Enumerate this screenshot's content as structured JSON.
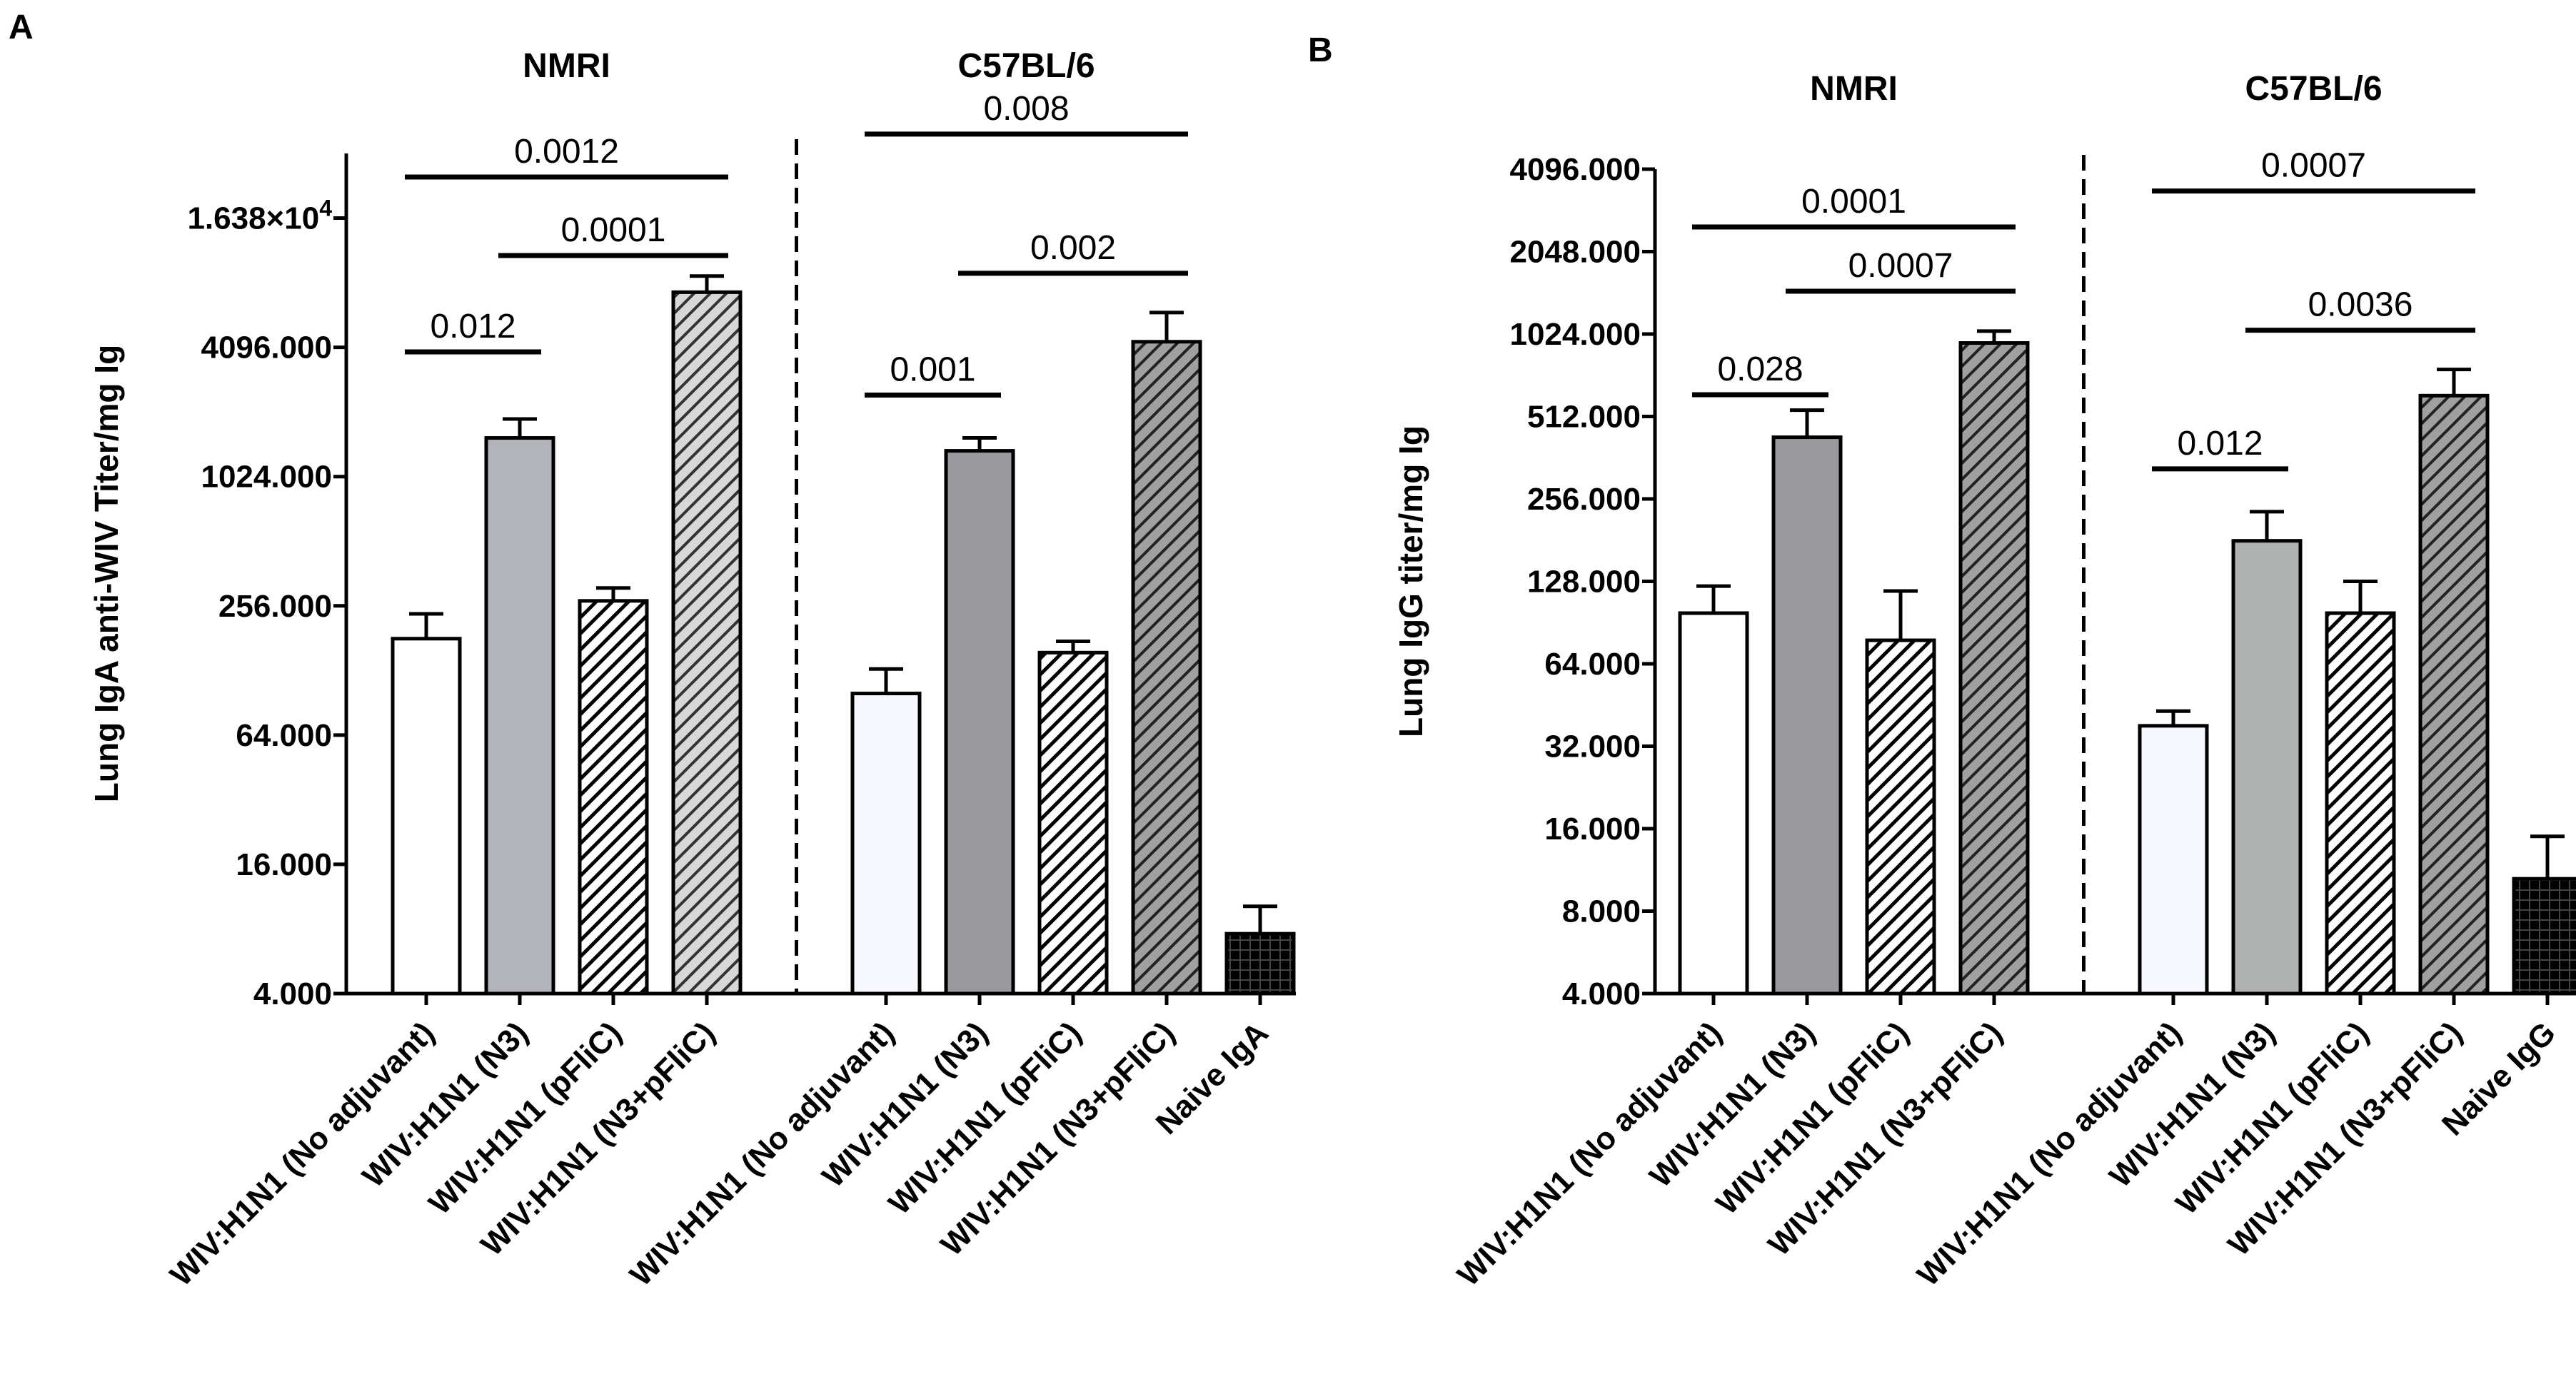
{
  "chart_data": [
    {
      "panel": "A",
      "type": "bar",
      "ylabel": "Lung IgA anti-WIV Titer/mg Ig",
      "yscale": "log2",
      "ylim": [
        4,
        32768
      ],
      "ticks": [
        {
          "value": 4,
          "label": "4.000"
        },
        {
          "value": 16,
          "label": "16.000"
        },
        {
          "value": 64,
          "label": "64.000"
        },
        {
          "value": 256,
          "label": "256.000"
        },
        {
          "value": 1024,
          "label": "1024.000"
        },
        {
          "value": 4096,
          "label": "4096.000"
        },
        {
          "value": 16384,
          "label": "1.638×10",
          "sup": "4"
        }
      ],
      "groups": [
        {
          "name": "NMRI",
          "divider_after": true
        },
        {
          "name": "C57BL/6",
          "divider_after": false
        }
      ],
      "bars": [
        {
          "group": 0,
          "label": "WIV:H1N1 (No adjuvant)",
          "value": 180,
          "error": 55,
          "style": "white"
        },
        {
          "group": 0,
          "label": "WIV:H1N1 (N3)",
          "value": 1550,
          "error": 350,
          "style": "gray"
        },
        {
          "group": 0,
          "label": "WIV:H1N1 (pFliC)",
          "value": 270,
          "error": 40,
          "style": "hatch-white"
        },
        {
          "group": 0,
          "label": "WIV:H1N1 (N3+pFliC)",
          "value": 7400,
          "error": 1400,
          "style": "hatch-gray"
        },
        {
          "group": 1,
          "label": "WIV:H1N1 (No adjuvant)",
          "value": 100,
          "error": 30,
          "style": "white-blue"
        },
        {
          "group": 1,
          "label": "WIV:H1N1 (N3)",
          "value": 1350,
          "error": 200,
          "style": "gray-dark"
        },
        {
          "group": 1,
          "label": "WIV:H1N1 (pFliC)",
          "value": 155,
          "error": 20,
          "style": "hatch-white"
        },
        {
          "group": 1,
          "label": "WIV:H1N1 (N3+pFliC)",
          "value": 4350,
          "error": 1600,
          "style": "hatch-dark"
        },
        {
          "group": 1,
          "label": "Naive IgA",
          "value": 7.6,
          "error": 2.6,
          "style": "black-grid"
        }
      ],
      "brackets": [
        {
          "from": 0,
          "to": 1,
          "label": "0.012"
        },
        {
          "from": 0,
          "to": 3,
          "label": "0.0012"
        },
        {
          "from": 1,
          "to": 3,
          "label": "0.0001"
        },
        {
          "from": 4,
          "to": 5,
          "label": "0.001"
        },
        {
          "from": 4,
          "to": 7,
          "label": "0.008"
        },
        {
          "from": 5,
          "to": 7,
          "label": "0.002"
        }
      ]
    },
    {
      "panel": "B",
      "type": "bar",
      "ylabel": "Lung IgG titer/mg Ig",
      "yscale": "log2",
      "ylim": [
        4,
        4096
      ],
      "ticks": [
        {
          "value": 4,
          "label": "4.000"
        },
        {
          "value": 8,
          "label": "8.000"
        },
        {
          "value": 16,
          "label": "16.000"
        },
        {
          "value": 32,
          "label": "32.000"
        },
        {
          "value": 64,
          "label": "64.000"
        },
        {
          "value": 128,
          "label": "128.000"
        },
        {
          "value": 256,
          "label": "256.000"
        },
        {
          "value": 512,
          "label": "512.000"
        },
        {
          "value": 1024,
          "label": "1024.000"
        },
        {
          "value": 2048,
          "label": "2048.000"
        },
        {
          "value": 4096,
          "label": "4096.000"
        }
      ],
      "groups": [
        {
          "name": "NMRI",
          "divider_after": true
        },
        {
          "name": "C57BL/6",
          "divider_after": false
        }
      ],
      "bars": [
        {
          "group": 0,
          "label": "WIV:H1N1 (No adjuvant)",
          "value": 98,
          "error": 25,
          "style": "white"
        },
        {
          "group": 0,
          "label": "WIV:H1N1 (N3)",
          "value": 430,
          "error": 110,
          "style": "gray-dark"
        },
        {
          "group": 0,
          "label": "WIV:H1N1 (pFliC)",
          "value": 78,
          "error": 40,
          "style": "hatch-white"
        },
        {
          "group": 0,
          "label": "WIV:H1N1 (N3+pFliC)",
          "value": 950,
          "error": 100,
          "style": "hatch-dark"
        },
        {
          "group": 1,
          "label": "WIV:H1N1 (No adjuvant)",
          "value": 38,
          "error": 5,
          "style": "white-blue"
        },
        {
          "group": 1,
          "label": "WIV:H1N1 (N3)",
          "value": 180,
          "error": 50,
          "style": "gray-light"
        },
        {
          "group": 1,
          "label": "WIV:H1N1 (pFliC)",
          "value": 98,
          "error": 30,
          "style": "hatch-white"
        },
        {
          "group": 1,
          "label": "WIV:H1N1 (N3+pFliC)",
          "value": 610,
          "error": 150,
          "style": "hatch-dark"
        },
        {
          "group": 1,
          "label": "Naive IgG",
          "value": 10.5,
          "error": 4.5,
          "style": "black-grid"
        }
      ],
      "brackets": [
        {
          "from": 0,
          "to": 1,
          "label": "0.028"
        },
        {
          "from": 0,
          "to": 3,
          "label": "0.0001"
        },
        {
          "from": 1,
          "to": 3,
          "label": "0.0007"
        },
        {
          "from": 4,
          "to": 5,
          "label": "0.012"
        },
        {
          "from": 4,
          "to": 7,
          "label": "0.0007"
        },
        {
          "from": 5,
          "to": 7,
          "label": "0.0036"
        }
      ]
    }
  ]
}
